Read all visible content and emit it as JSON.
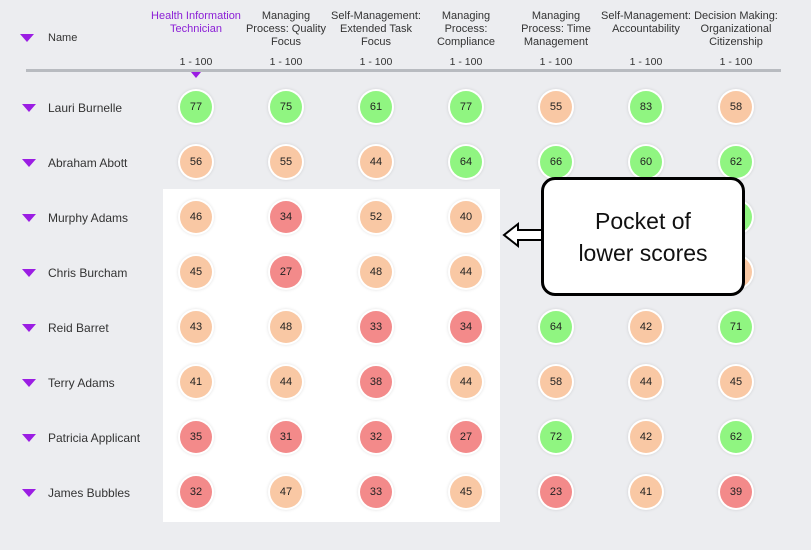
{
  "name_header": "Name",
  "columns": [
    {
      "title": "Health Information Technician",
      "range": "1 - 100",
      "active": true
    },
    {
      "title": "Managing Process: Quality Focus",
      "range": "1 - 100"
    },
    {
      "title": "Self-Management: Extended Task Focus",
      "range": "1 - 100"
    },
    {
      "title": "Managing Process: Compliance",
      "range": "1 - 100"
    },
    {
      "title": "Managing Process: Time Management",
      "range": "1 - 100"
    },
    {
      "title": "Self-Management: Accountability",
      "range": "1 - 100"
    },
    {
      "title": "Decision Making: Organizational Citizenship",
      "range": "1 - 100"
    }
  ],
  "rows": [
    {
      "name": "Lauri Burnelle",
      "scores": [
        77,
        75,
        61,
        77,
        55,
        83,
        58
      ],
      "status": [
        "green",
        "green",
        "green",
        "green",
        "orange",
        "green",
        "orange"
      ]
    },
    {
      "name": "Abraham Abott",
      "scores": [
        56,
        55,
        44,
        64,
        66,
        60,
        62
      ],
      "status": [
        "orange",
        "orange",
        "orange",
        "green",
        "green",
        "green",
        "green"
      ]
    },
    {
      "name": "Murphy Adams",
      "scores": [
        46,
        34,
        52,
        40,
        null,
        null,
        null
      ],
      "status": [
        "orange",
        "red",
        "orange",
        "orange",
        null,
        null,
        "green"
      ]
    },
    {
      "name": "Chris Burcham",
      "scores": [
        45,
        27,
        48,
        44,
        null,
        null,
        null
      ],
      "status": [
        "orange",
        "red",
        "orange",
        "orange",
        null,
        null,
        "orange"
      ]
    },
    {
      "name": "Reid Barret",
      "scores": [
        43,
        48,
        33,
        34,
        64,
        42,
        71
      ],
      "status": [
        "orange",
        "orange",
        "red",
        "red",
        "green",
        "orange",
        "green"
      ]
    },
    {
      "name": "Terry Adams",
      "scores": [
        41,
        44,
        38,
        44,
        58,
        44,
        45
      ],
      "status": [
        "orange",
        "orange",
        "red",
        "orange",
        "orange",
        "orange",
        "orange"
      ]
    },
    {
      "name": "Patricia Applicant",
      "scores": [
        35,
        31,
        32,
        27,
        72,
        42,
        62
      ],
      "status": [
        "red",
        "red",
        "red",
        "red",
        "green",
        "orange",
        "green"
      ]
    },
    {
      "name": "James Bubbles",
      "scores": [
        32,
        47,
        33,
        45,
        23,
        41,
        39
      ],
      "status": [
        "red",
        "orange",
        "red",
        "orange",
        "red",
        "orange",
        "red"
      ]
    }
  ],
  "callout": {
    "text": "Pocket of lower scores"
  },
  "colors": {
    "green": "#90f581",
    "orange": "#f9c8a4",
    "red": "#f38a8a",
    "accent": "#9b1de3"
  }
}
